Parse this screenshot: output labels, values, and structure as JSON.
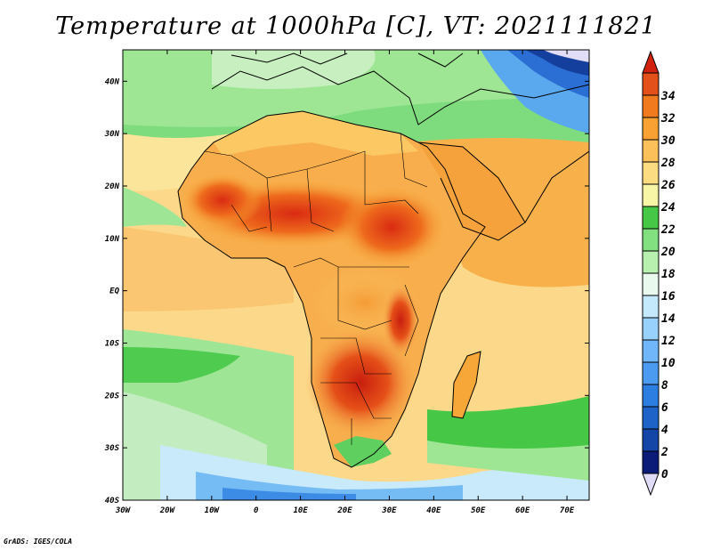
{
  "title": "Temperature at 1000hPa [C], VT: 2021111821",
  "credit": "GrADS: IGES/COLA",
  "map": {
    "variable": "Temperature at 1000hPa",
    "units": "C",
    "valid_time": "2021111821",
    "lon_range": [
      -30,
      75
    ],
    "lat_range": [
      -40,
      46
    ],
    "lon_ticks": [
      {
        "value": -30,
        "label": "30W"
      },
      {
        "value": -20,
        "label": "20W"
      },
      {
        "value": -10,
        "label": "10W"
      },
      {
        "value": 0,
        "label": "0"
      },
      {
        "value": 10,
        "label": "10E"
      },
      {
        "value": 20,
        "label": "20E"
      },
      {
        "value": 30,
        "label": "30E"
      },
      {
        "value": 40,
        "label": "40E"
      },
      {
        "value": 50,
        "label": "50E"
      },
      {
        "value": 60,
        "label": "60E"
      },
      {
        "value": 70,
        "label": "70E"
      }
    ],
    "lat_ticks": [
      {
        "value": 40,
        "label": "40N"
      },
      {
        "value": 30,
        "label": "30N"
      },
      {
        "value": 20,
        "label": "20N"
      },
      {
        "value": 10,
        "label": "10N"
      },
      {
        "value": 0,
        "label": "EQ"
      },
      {
        "value": -10,
        "label": "10S"
      },
      {
        "value": -20,
        "label": "20S"
      },
      {
        "value": -30,
        "label": "30S"
      },
      {
        "value": -40,
        "label": "40S"
      }
    ]
  },
  "colorbar": {
    "labels": [
      "0",
      "2",
      "4",
      "6",
      "8",
      "10",
      "12",
      "14",
      "16",
      "18",
      "20",
      "22",
      "24",
      "26",
      "28",
      "30",
      "32",
      "34"
    ],
    "colors": [
      "#e0dcf8",
      "#0a1c78",
      "#1446a8",
      "#1e64c8",
      "#2c7ee0",
      "#4b9cf0",
      "#6fb7f8",
      "#98d2fc",
      "#c4e9fc",
      "#e9f9ee",
      "#b8f0b0",
      "#82e080",
      "#46c846",
      "#f7f5a6",
      "#fcdc80",
      "#fbc05a",
      "#f9a133",
      "#f17a1e",
      "#e4501a",
      "#d0210f"
    ]
  }
}
